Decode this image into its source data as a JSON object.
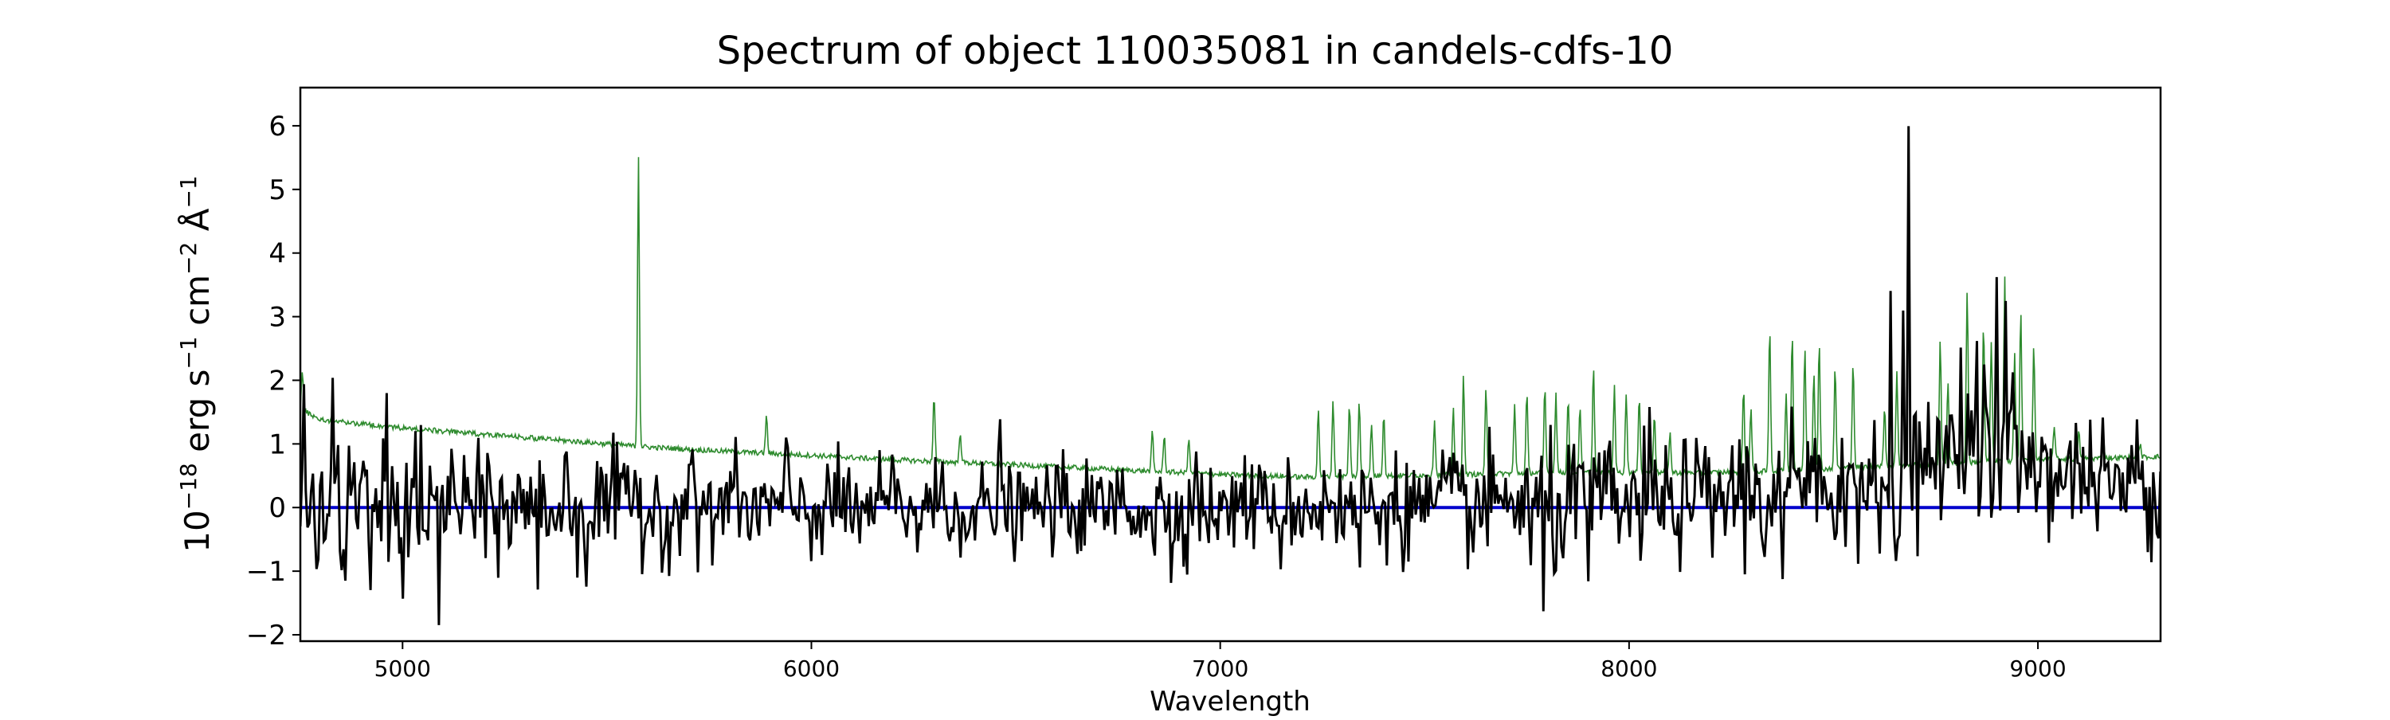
{
  "chart_data": {
    "type": "line",
    "title": "Spectrum of object 110035081 in candels-cdfs-10",
    "xlabel": "Wavelength",
    "ylabel_base": "10",
    "ylabel_exp": "−18",
    "ylabel_unit_1": " erg s",
    "ylabel_exp_1": "−1",
    "ylabel_unit_2": " cm",
    "ylabel_exp_2": "−2",
    "ylabel_unit_3": " Å",
    "ylabel_exp_3": "−1",
    "xlim": [
      4750,
      9300
    ],
    "ylim": [
      -2.1,
      6.6
    ],
    "x_ticks": [
      5000,
      6000,
      7000,
      8000,
      9000
    ],
    "x_tick_labels": [
      "5000",
      "6000",
      "7000",
      "8000",
      "9000"
    ],
    "y_ticks": [
      -2,
      -1,
      0,
      1,
      2,
      3,
      4,
      5,
      6
    ],
    "y_tick_labels": [
      "−2",
      "−1",
      "0",
      "1",
      "2",
      "3",
      "4",
      "5",
      "6"
    ],
    "grid": false,
    "colors": {
      "flux": "#000000",
      "error": "#2e8b2e",
      "zero": "#0000cc"
    },
    "zero_line": {
      "y": 0
    },
    "error_curve": {
      "continuum": [
        [
          4750,
          1.55
        ],
        [
          4800,
          1.38
        ],
        [
          5000,
          1.25
        ],
        [
          5200,
          1.15
        ],
        [
          5400,
          1.05
        ],
        [
          5600,
          0.95
        ],
        [
          5800,
          0.88
        ],
        [
          6000,
          0.82
        ],
        [
          6200,
          0.75
        ],
        [
          6400,
          0.7
        ],
        [
          6600,
          0.64
        ],
        [
          6800,
          0.58
        ],
        [
          7000,
          0.52
        ],
        [
          7200,
          0.48
        ],
        [
          7400,
          0.5
        ],
        [
          7600,
          0.52
        ],
        [
          7800,
          0.55
        ],
        [
          8000,
          0.55
        ],
        [
          8200,
          0.55
        ],
        [
          8400,
          0.58
        ],
        [
          8600,
          0.65
        ],
        [
          8800,
          0.7
        ],
        [
          9000,
          0.75
        ],
        [
          9300,
          0.8
        ]
      ],
      "peaks": [
        [
          4755,
          2.15
        ],
        [
          5577,
          5.55
        ],
        [
          5890,
          1.45
        ],
        [
          6300,
          1.75
        ],
        [
          6364,
          1.2
        ],
        [
          6834,
          1.2
        ],
        [
          6863,
          1.15
        ],
        [
          6923,
          1.1
        ],
        [
          7240,
          1.55
        ],
        [
          7276,
          1.7
        ],
        [
          7316,
          1.6
        ],
        [
          7340,
          1.65
        ],
        [
          7370,
          1.3
        ],
        [
          7400,
          1.5
        ],
        [
          7524,
          1.4
        ],
        [
          7570,
          1.6
        ],
        [
          7595,
          2.1
        ],
        [
          7650,
          1.85
        ],
        [
          7720,
          1.6
        ],
        [
          7750,
          1.8
        ],
        [
          7794,
          1.9
        ],
        [
          7821,
          1.8
        ],
        [
          7851,
          1.75
        ],
        [
          7880,
          1.6
        ],
        [
          7913,
          2.25
        ],
        [
          7964,
          1.95
        ],
        [
          7993,
          1.8
        ],
        [
          8025,
          1.75
        ],
        [
          8062,
          1.5
        ],
        [
          8100,
          1.2
        ],
        [
          8280,
          1.9
        ],
        [
          8298,
          1.6
        ],
        [
          8344,
          2.85
        ],
        [
          8384,
          1.8
        ],
        [
          8399,
          2.75
        ],
        [
          8430,
          2.5
        ],
        [
          8452,
          2.15
        ],
        [
          8465,
          2.6
        ],
        [
          8504,
          2.2
        ],
        [
          8548,
          2.3
        ],
        [
          8625,
          1.6
        ],
        [
          8655,
          2.15
        ],
        [
          8761,
          2.65
        ],
        [
          8780,
          2.0
        ],
        [
          8827,
          3.45
        ],
        [
          8867,
          2.9
        ],
        [
          8886,
          2.6
        ],
        [
          8919,
          3.6
        ],
        [
          8943,
          2.4
        ],
        [
          8958,
          3.1
        ],
        [
          8990,
          2.6
        ],
        [
          9040,
          1.3
        ],
        [
          9100,
          1.2
        ],
        [
          9160,
          1.1
        ],
        [
          9250,
          1.0
        ]
      ]
    },
    "flux_curve": {
      "spikes": [
        [
          4760,
          1.5
        ],
        [
          4790,
          -1.0
        ],
        [
          4830,
          1.7
        ],
        [
          4860,
          -1.0
        ],
        [
          4880,
          1.3
        ],
        [
          4920,
          -1.2
        ],
        [
          4960,
          1.4
        ],
        [
          5000,
          -0.8
        ],
        [
          5030,
          1.3
        ],
        [
          5060,
          -1.2
        ],
        [
          5090,
          -1.7
        ],
        [
          5120,
          1.45
        ],
        [
          5200,
          -1.25
        ],
        [
          5210,
          1.2
        ],
        [
          5260,
          -1.0
        ],
        [
          5270,
          1.0
        ],
        [
          5330,
          -0.8
        ],
        [
          5400,
          0.9
        ],
        [
          5450,
          -1.2
        ],
        [
          5510,
          0.8
        ],
        [
          5570,
          0.85
        ],
        [
          5640,
          -0.8
        ],
        [
          5700,
          0.9
        ],
        [
          5760,
          -0.7
        ],
        [
          5800,
          0.9
        ],
        [
          5870,
          -0.6
        ],
        [
          5940,
          0.8
        ],
        [
          6000,
          -0.6
        ],
        [
          6040,
          0.8
        ],
        [
          6120,
          -0.7
        ],
        [
          6200,
          0.75
        ],
        [
          6260,
          -0.6
        ],
        [
          6320,
          0.8
        ],
        [
          6400,
          -0.7
        ],
        [
          6460,
          1.05
        ],
        [
          6520,
          -0.6
        ],
        [
          6600,
          0.7
        ],
        [
          6680,
          -0.65
        ],
        [
          6760,
          0.65
        ],
        [
          6840,
          -0.7
        ],
        [
          6880,
          -1.1
        ],
        [
          6940,
          0.8
        ],
        [
          7000,
          -0.6
        ],
        [
          7060,
          0.75
        ],
        [
          7150,
          -0.65
        ],
        [
          7260,
          0.8
        ],
        [
          7300,
          -1.0
        ],
        [
          7340,
          -1.05
        ],
        [
          7420,
          0.7
        ],
        [
          7500,
          -0.6
        ],
        [
          7560,
          0.8
        ],
        [
          7640,
          -0.6
        ],
        [
          7700,
          0.8
        ],
        [
          7760,
          -1.0
        ],
        [
          7790,
          -1.55
        ],
        [
          7820,
          -1.2
        ],
        [
          7850,
          0.9
        ],
        [
          7900,
          -0.8
        ],
        [
          7950,
          1.0
        ],
        [
          8000,
          -0.6
        ],
        [
          8050,
          0.9
        ],
        [
          8100,
          -0.5
        ],
        [
          8150,
          0.8
        ],
        [
          8200,
          -0.7
        ],
        [
          8270,
          0.9
        ],
        [
          8330,
          -0.6
        ],
        [
          8373,
          -1.65
        ],
        [
          8400,
          1.0
        ],
        [
          8460,
          -0.7
        ],
        [
          8520,
          1.0
        ],
        [
          8560,
          -0.6
        ],
        [
          8600,
          1.5
        ],
        [
          8640,
          2.4
        ],
        [
          8658,
          -0.5
        ],
        [
          8670,
          2.9
        ],
        [
          8683,
          6.25
        ],
        [
          8700,
          1.8
        ],
        [
          8740,
          1.2
        ],
        [
          8770,
          1.9
        ],
        [
          8790,
          1.5
        ],
        [
          8810,
          2.1
        ],
        [
          8830,
          4.0
        ],
        [
          8850,
          1.8
        ],
        [
          8870,
          3.4
        ],
        [
          8885,
          -0.85
        ],
        [
          8900,
          3.3
        ],
        [
          8920,
          3.5
        ],
        [
          8940,
          2.6
        ],
        [
          8960,
          1.5
        ],
        [
          8990,
          1.2
        ],
        [
          9020,
          1.6
        ],
        [
          9060,
          -0.4
        ],
        [
          9100,
          1.0
        ],
        [
          9150,
          0.8
        ],
        [
          9200,
          -0.5
        ],
        [
          9240,
          1.2
        ],
        [
          9270,
          -0.5
        ],
        [
          9290,
          0.7
        ]
      ],
      "baseline": [
        [
          4750,
          0.0
        ],
        [
          5400,
          0.0
        ],
        [
          6000,
          0.0
        ],
        [
          7000,
          0.0
        ],
        [
          8000,
          0.05
        ],
        [
          8700,
          0.4
        ],
        [
          8800,
          0.9
        ],
        [
          9000,
          0.6
        ],
        [
          9300,
          0.3
        ]
      ],
      "noise_sigma": [
        [
          4750,
          0.5
        ],
        [
          5400,
          0.45
        ],
        [
          6000,
          0.35
        ],
        [
          7000,
          0.35
        ],
        [
          7800,
          0.45
        ],
        [
          8600,
          0.5
        ],
        [
          9300,
          0.45
        ]
      ]
    }
  }
}
